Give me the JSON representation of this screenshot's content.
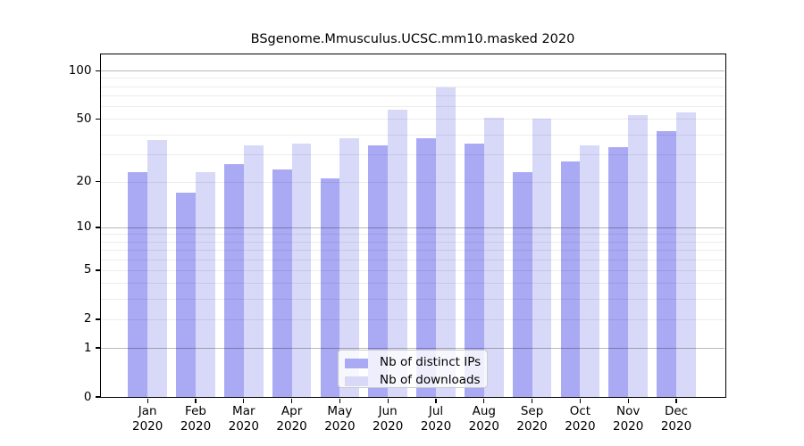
{
  "chart_data": {
    "type": "bar",
    "title": "BSgenome.Mmusculus.UCSC.mm10.masked 2020",
    "categories": [
      "Jan 2020",
      "Feb 2020",
      "Mar 2020",
      "Apr 2020",
      "May 2020",
      "Jun 2020",
      "Jul 2020",
      "Aug 2020",
      "Sep 2020",
      "Oct 2020",
      "Nov 2020",
      "Dec 2020"
    ],
    "series": [
      {
        "name": "Nb of distinct IPs",
        "color": "#a9a9f4",
        "values": [
          23,
          17,
          26,
          24,
          21,
          34,
          38,
          35,
          23,
          27,
          33,
          42
        ]
      },
      {
        "name": "Nb of downloads",
        "color": "#d8d8f8",
        "values": [
          37,
          23,
          34,
          35,
          38,
          57,
          79,
          51,
          50,
          34,
          53,
          55
        ]
      }
    ],
    "xlabel": "",
    "ylabel": "",
    "y_axis": {
      "scale": "log1p",
      "top_value": 126,
      "ticks": [
        0,
        1,
        2,
        5,
        10,
        20,
        50,
        100
      ],
      "grid_major": [
        1,
        10,
        100
      ],
      "grid_minor": [
        2,
        3,
        4,
        5,
        6,
        7,
        8,
        9,
        20,
        30,
        40,
        50,
        60,
        70,
        80,
        90
      ]
    },
    "legend_position": "bottom-center-inside",
    "grid": true,
    "colors": {
      "background": "#ffffff",
      "spine": "#000000",
      "grid_major": "#b8b8b8",
      "grid_minor": "#ececec",
      "legend_border": "#cccccc"
    }
  }
}
